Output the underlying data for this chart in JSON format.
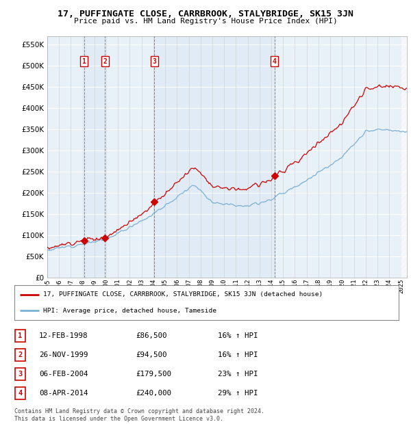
{
  "title": "17, PUFFINGATE CLOSE, CARRBROOK, STALYBRIDGE, SK15 3JN",
  "subtitle": "Price paid vs. HM Land Registry's House Price Index (HPI)",
  "ytick_values": [
    0,
    50000,
    100000,
    150000,
    200000,
    250000,
    300000,
    350000,
    400000,
    450000,
    500000,
    550000
  ],
  "xmin": 1995.0,
  "xmax": 2025.5,
  "ymin": 0,
  "ymax": 570000,
  "sale_dates": [
    1998.11,
    1999.9,
    2004.09,
    2014.27
  ],
  "sale_prices": [
    86500,
    94500,
    179500,
    240000
  ],
  "sale_labels": [
    "1",
    "2",
    "3",
    "4"
  ],
  "hpi_red_color": "#cc0000",
  "hpi_blue_color": "#7ab0d4",
  "background_color": "#e8f0f8",
  "legend_entries": [
    "17, PUFFINGATE CLOSE, CARRBROOK, STALYBRIDGE, SK15 3JN (detached house)",
    "HPI: Average price, detached house, Tameside"
  ],
  "table_data": [
    [
      "1",
      "12-FEB-1998",
      "£86,500",
      "16% ↑ HPI"
    ],
    [
      "2",
      "26-NOV-1999",
      "£94,500",
      "16% ↑ HPI"
    ],
    [
      "3",
      "06-FEB-2004",
      "£179,500",
      "23% ↑ HPI"
    ],
    [
      "4",
      "08-APR-2014",
      "£240,000",
      "29% ↑ HPI"
    ]
  ],
  "footnote": "Contains HM Land Registry data © Crown copyright and database right 2024.\nThis data is licensed under the Open Government Licence v3.0.",
  "xtick_years": [
    1995,
    1996,
    1997,
    1998,
    1999,
    2000,
    2001,
    2002,
    2003,
    2004,
    2005,
    2006,
    2007,
    2008,
    2009,
    2010,
    2011,
    2012,
    2013,
    2014,
    2015,
    2016,
    2017,
    2018,
    2019,
    2020,
    2021,
    2022,
    2023,
    2024,
    2025
  ]
}
